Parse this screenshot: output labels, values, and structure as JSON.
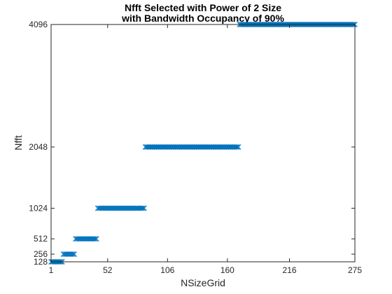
{
  "chart_data": {
    "type": "scatter",
    "title": "Nfft Selected with Power of 2 Size",
    "subtitle": "with Bandwidth Occupancy of 90%",
    "xlabel": "NSizeGrid",
    "ylabel": "Nfft",
    "xlim": [
      1,
      275
    ],
    "ylim": [
      128,
      4096
    ],
    "xticks": [
      1,
      52,
      106,
      160,
      216,
      275
    ],
    "yticks": [
      128,
      256,
      512,
      1024,
      2048,
      4096
    ],
    "grid": false,
    "legend": "none",
    "marker": "x",
    "color": "#0072BD",
    "segments": [
      {
        "x_start": 1,
        "x_end": 11,
        "y": 128
      },
      {
        "x_start": 12,
        "x_end": 22,
        "y": 256
      },
      {
        "x_start": 23,
        "x_end": 42,
        "y": 512
      },
      {
        "x_start": 43,
        "x_end": 85,
        "y": 1024
      },
      {
        "x_start": 86,
        "x_end": 170,
        "y": 2048
      },
      {
        "x_start": 171,
        "x_end": 275,
        "y": 4096
      }
    ]
  }
}
